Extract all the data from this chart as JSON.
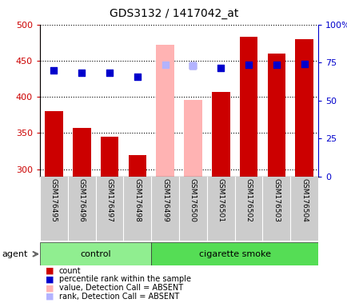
{
  "title": "GDS3132 / 1417042_at",
  "samples": [
    "GSM176495",
    "GSM176496",
    "GSM176497",
    "GSM176498",
    "GSM176499",
    "GSM176500",
    "GSM176501",
    "GSM176502",
    "GSM176503",
    "GSM176504"
  ],
  "bar_values": [
    380,
    357,
    345,
    320,
    472,
    396,
    407,
    483,
    460,
    480
  ],
  "bar_colors": [
    "#cc0000",
    "#cc0000",
    "#cc0000",
    "#cc0000",
    "#ffb3b3",
    "#ffb3b3",
    "#cc0000",
    "#cc0000",
    "#cc0000",
    "#cc0000"
  ],
  "dot_values": [
    437,
    433,
    433,
    428,
    null,
    443,
    440,
    444,
    444,
    446
  ],
  "dot_colors": [
    "#0000cc",
    "#0000cc",
    "#0000cc",
    "#0000cc",
    null,
    "#0000cc",
    "#0000cc",
    "#0000cc",
    "#0000cc",
    "#0000cc"
  ],
  "absent_dot_values": [
    null,
    null,
    null,
    null,
    444,
    443,
    null,
    null,
    null,
    null
  ],
  "absent_dot_color": "#b3b3ff",
  "ylim_left": [
    290,
    500
  ],
  "ylim_right": [
    0,
    100
  ],
  "yticks_left": [
    300,
    350,
    400,
    450,
    500
  ],
  "yticks_right": [
    0,
    25,
    50,
    75,
    100
  ],
  "ytick_labels_left": [
    "300",
    "350",
    "400",
    "450",
    "500"
  ],
  "ytick_labels_right": [
    "0",
    "25",
    "50",
    "75",
    "100%"
  ],
  "control_label": "control",
  "smoke_label": "cigarette smoke",
  "agent_label": "agent",
  "control_color": "#90ee90",
  "smoke_color": "#55dd55",
  "legend_items": [
    {
      "color": "#cc0000",
      "label": "count"
    },
    {
      "color": "#0000cc",
      "label": "percentile rank within the sample"
    },
    {
      "color": "#ffb3b3",
      "label": "value, Detection Call = ABSENT"
    },
    {
      "color": "#b3b3ff",
      "label": "rank, Detection Call = ABSENT"
    }
  ],
  "bar_width": 0.65,
  "dot_size": 30
}
